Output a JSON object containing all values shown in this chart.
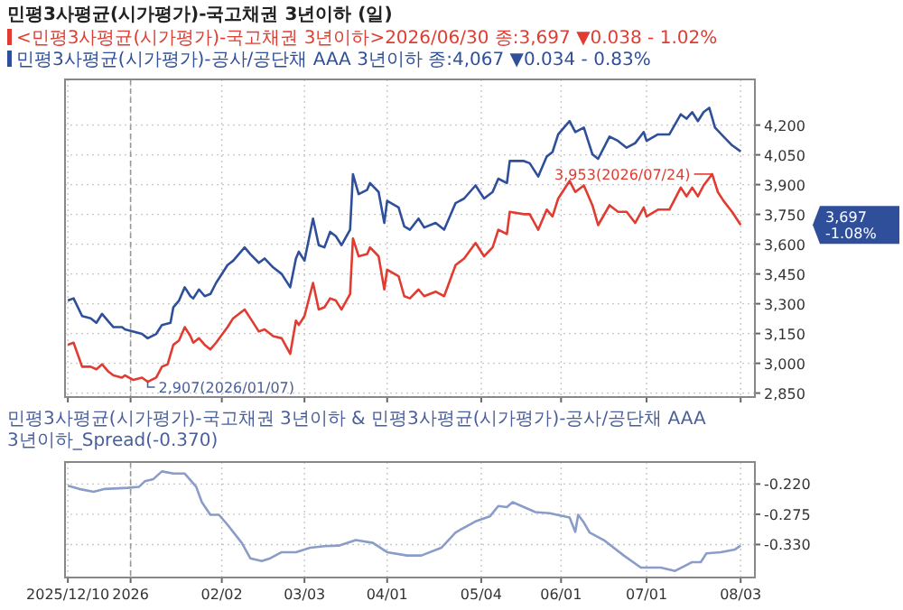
{
  "chart_data": [
    {
      "type": "line",
      "title": "민평3사평균(시가평가)-국고채권 3년이하 (일)",
      "legend": "top left",
      "tick_labels": "y",
      "grid": true,
      "xlim": [
        "2025-12-09",
        "2026-08-08"
      ],
      "xticks": [
        {
          "value": "2025-12-10",
          "label": null
        },
        {
          "value": "2026-01-01",
          "label": null
        },
        {
          "value": "2026-02-02",
          "label": null
        },
        {
          "value": "2026-03-03",
          "label": null
        },
        {
          "value": "2026-04-01",
          "label": null
        },
        {
          "value": "2026-05-04",
          "label": null
        },
        {
          "value": "2026-06-01",
          "label": null
        },
        {
          "value": "2026-07-01",
          "label": null
        },
        {
          "value": "2026-08-03",
          "label": null
        }
      ],
      "ylim": [
        2830,
        4430
      ],
      "yticks": [
        {
          "value": 2850,
          "label": "2,850"
        },
        {
          "value": 3000,
          "label": "3,000"
        },
        {
          "value": 3150,
          "label": "3,150"
        },
        {
          "value": 3300,
          "label": "3,300"
        },
        {
          "value": 3450,
          "label": "3,450"
        },
        {
          "value": 3600,
          "label": "3,600"
        },
        {
          "value": 3750,
          "label": "3,750"
        },
        {
          "value": 3900,
          "label": "3,900"
        },
        {
          "value": 4050,
          "label": "4,050"
        },
        {
          "value": 4200,
          "label": "4,200"
        }
      ],
      "ref_lines": [
        {
          "axis": "x",
          "value": "2026-01-01",
          "color": "#999999",
          "line_style": "dashed"
        }
      ],
      "series": [
        {
          "name": "<민평3사평균(시가평가)-국고채권 3년이하>2026/06/30 종:3,697 ▼0.038 - 1.02%",
          "color": "#e03c31",
          "x": [
            "2025-12-10",
            "2025-12-12",
            "2025-12-15",
            "2025-12-18",
            "2025-12-20",
            "2025-12-22",
            "2025-12-24",
            "2025-12-26",
            "2025-12-29",
            "2025-12-30",
            "2026-01-02",
            "2026-01-05",
            "2026-01-07",
            "2026-01-10",
            "2026-01-12",
            "2026-01-14",
            "2026-01-16",
            "2026-01-18",
            "2026-01-20",
            "2026-01-22",
            "2026-01-23",
            "2026-01-25",
            "2026-01-27",
            "2026-01-29",
            "2026-01-31",
            "2026-02-04",
            "2026-02-06",
            "2026-02-10",
            "2026-02-12",
            "2026-02-15",
            "2026-02-17",
            "2026-02-20",
            "2026-02-23",
            "2026-02-26",
            "2026-02-28",
            "2026-03-01",
            "2026-03-03",
            "2026-03-06",
            "2026-03-08",
            "2026-03-10",
            "2026-03-12",
            "2026-03-14",
            "2026-03-16",
            "2026-03-19",
            "2026-03-20",
            "2026-03-22",
            "2026-03-25",
            "2026-03-26",
            "2026-03-29",
            "2026-03-31",
            "2026-04-01",
            "2026-04-05",
            "2026-04-07",
            "2026-04-09",
            "2026-04-12",
            "2026-04-14",
            "2026-04-18",
            "2026-04-21",
            "2026-04-25",
            "2026-04-28",
            "2026-05-02",
            "2026-05-05",
            "2026-05-08",
            "2026-05-10",
            "2026-05-13",
            "2026-05-14",
            "2026-05-19",
            "2026-05-21",
            "2026-05-24",
            "2026-05-27",
            "2026-05-29",
            "2026-05-31",
            "2026-06-04",
            "2026-06-06",
            "2026-06-09",
            "2026-06-12",
            "2026-06-14",
            "2026-06-18",
            "2026-06-21",
            "2026-06-24",
            "2026-06-27",
            "2026-06-30",
            "2026-07-01",
            "2026-07-05",
            "2026-07-09",
            "2026-07-13",
            "2026-07-15",
            "2026-07-17",
            "2026-07-19",
            "2026-07-21",
            "2026-07-24",
            "2026-07-26",
            "2026-07-28",
            "2026-07-31",
            "2026-08-03"
          ],
          "values": [
            3093,
            3104,
            2983,
            2983,
            2970,
            2995,
            2961,
            2939,
            2928,
            2939,
            2916,
            2928,
            2907,
            2928,
            2983,
            2995,
            3093,
            3115,
            3182,
            3137,
            3104,
            3126,
            3093,
            3070,
            3104,
            3182,
            3227,
            3271,
            3227,
            3160,
            3171,
            3137,
            3126,
            3048,
            3215,
            3193,
            3238,
            3405,
            3271,
            3282,
            3327,
            3316,
            3271,
            3349,
            3629,
            3539,
            3550,
            3584,
            3539,
            3372,
            3472,
            3439,
            3338,
            3327,
            3372,
            3338,
            3361,
            3338,
            3495,
            3528,
            3606,
            3539,
            3584,
            3673,
            3651,
            3763,
            3751,
            3751,
            3673,
            3774,
            3740,
            3830,
            3919,
            3863,
            3896,
            3796,
            3696,
            3796,
            3763,
            3763,
            3707,
            3785,
            3740,
            3774,
            3774,
            3885,
            3841,
            3885,
            3841,
            3896,
            3953,
            3863,
            3818,
            3763,
            3697
          ]
        },
        {
          "name": "민평3사평균(시가평가)-공사/공단채 AAA 3년이하 종:4,067 ▼0.034 - 0.83%",
          "color": "#2f4f9a",
          "x": [
            "2025-12-10",
            "2025-12-12",
            "2025-12-15",
            "2025-12-18",
            "2025-12-20",
            "2025-12-22",
            "2025-12-24",
            "2025-12-26",
            "2025-12-29",
            "2025-12-30",
            "2026-01-02",
            "2026-01-05",
            "2026-01-07",
            "2026-01-10",
            "2026-01-12",
            "2026-01-15",
            "2026-01-16",
            "2026-01-18",
            "2026-01-20",
            "2026-01-22",
            "2026-01-23",
            "2026-01-25",
            "2026-01-27",
            "2026-01-29",
            "2026-01-31",
            "2026-02-04",
            "2026-02-06",
            "2026-02-10",
            "2026-02-12",
            "2026-02-15",
            "2026-02-17",
            "2026-02-20",
            "2026-02-23",
            "2026-02-26",
            "2026-02-28",
            "2026-03-01",
            "2026-03-03",
            "2026-03-06",
            "2026-03-08",
            "2026-03-10",
            "2026-03-12",
            "2026-03-14",
            "2026-03-16",
            "2026-03-19",
            "2026-03-20",
            "2026-03-22",
            "2026-03-25",
            "2026-03-26",
            "2026-03-29",
            "2026-03-31",
            "2026-04-01",
            "2026-04-05",
            "2026-04-07",
            "2026-04-09",
            "2026-04-12",
            "2026-04-14",
            "2026-04-18",
            "2026-04-21",
            "2026-04-25",
            "2026-04-28",
            "2026-05-02",
            "2026-05-05",
            "2026-05-08",
            "2026-05-10",
            "2026-05-13",
            "2026-05-14",
            "2026-05-19",
            "2026-05-21",
            "2026-05-24",
            "2026-05-27",
            "2026-05-29",
            "2026-05-31",
            "2026-06-04",
            "2026-06-06",
            "2026-06-09",
            "2026-06-12",
            "2026-06-14",
            "2026-06-18",
            "2026-06-21",
            "2026-06-24",
            "2026-06-27",
            "2026-06-30",
            "2026-07-01",
            "2026-07-05",
            "2026-07-09",
            "2026-07-13",
            "2026-07-15",
            "2026-07-17",
            "2026-07-19",
            "2026-07-21",
            "2026-07-23",
            "2026-07-25",
            "2026-07-28",
            "2026-07-31",
            "2026-08-03"
          ],
          "values": [
            3316,
            3327,
            3238,
            3227,
            3204,
            3249,
            3215,
            3182,
            3182,
            3171,
            3160,
            3148,
            3126,
            3148,
            3193,
            3204,
            3282,
            3316,
            3383,
            3338,
            3327,
            3372,
            3338,
            3349,
            3405,
            3495,
            3517,
            3584,
            3550,
            3506,
            3528,
            3483,
            3450,
            3383,
            3528,
            3562,
            3517,
            3729,
            3595,
            3584,
            3662,
            3640,
            3595,
            3673,
            3952,
            3852,
            3874,
            3908,
            3863,
            3707,
            3818,
            3785,
            3690,
            3673,
            3729,
            3684,
            3707,
            3673,
            3807,
            3830,
            3896,
            3830,
            3863,
            3930,
            3908,
            4019,
            4019,
            4008,
            3941,
            4042,
            4064,
            4153,
            4220,
            4165,
            4187,
            4053,
            4030,
            4142,
            4120,
            4086,
            4109,
            4165,
            4120,
            4153,
            4153,
            4254,
            4232,
            4265,
            4220,
            4265,
            4287,
            4187,
            4142,
            4098,
            4067
          ]
        }
      ],
      "annotations": [
        {
          "text": "2,907(2026/01/07)",
          "x": "2026-01-07",
          "y": 2907
        },
        {
          "text": "3,953(2026/07/24)",
          "x": "2026-07-24",
          "y": 3953
        },
        "3,697\n-1.08%"
      ]
    },
    {
      "type": "line",
      "title": "민평3사평균(시가평가)-국고채권 3년이하 & 민평3사평균(시가평가)-공사/공단채 AAA 3년이하_Spread(-0.370)",
      "grid": true,
      "xlim": [
        "2025-12-09",
        "2026-08-08"
      ],
      "xticks": [
        {
          "value": "2025-12-10",
          "label": "2025/12/10"
        },
        {
          "value": "2026-01-01",
          "label": "2026"
        },
        {
          "value": "2026-02-02",
          "label": "02/02"
        },
        {
          "value": "2026-03-03",
          "label": "03/03"
        },
        {
          "value": "2026-04-01",
          "label": "04/01"
        },
        {
          "value": "2026-05-04",
          "label": "05/04"
        },
        {
          "value": "2026-06-01",
          "label": "06/01"
        },
        {
          "value": "2026-07-01",
          "label": "07/01"
        },
        {
          "value": "2026-08-03",
          "label": "08/03"
        }
      ],
      "ylim": [
        -0.39,
        -0.18
      ],
      "yticks": [
        {
          "value": -0.33,
          "label": "-0.330"
        },
        {
          "value": -0.275,
          "label": "-0.275"
        },
        {
          "value": -0.22,
          "label": "-0.220"
        }
      ],
      "ref_lines": [
        {
          "axis": "x",
          "value": "2026-01-01",
          "color": "#999999",
          "line_style": "dashed"
        }
      ],
      "series": [
        {
          "color": "#8a9cc8",
          "x": [
            "2025-12-10",
            "2025-12-14",
            "2025-12-19",
            "2025-12-23",
            "2025-12-31",
            "2026-01-04",
            "2026-01-06",
            "2026-01-09",
            "2026-01-12",
            "2026-01-16",
            "2026-01-20",
            "2026-01-24",
            "2026-01-26",
            "2026-01-29",
            "2026-02-01",
            "2026-02-04",
            "2026-02-09",
            "2026-02-12",
            "2026-02-16",
            "2026-02-19",
            "2026-02-23",
            "2026-02-28",
            "2026-03-05",
            "2026-03-10",
            "2026-03-15",
            "2026-03-21",
            "2026-03-27",
            "2026-04-01",
            "2026-04-08",
            "2026-04-13",
            "2026-04-20",
            "2026-04-25",
            "2026-05-02",
            "2026-05-07",
            "2026-05-10",
            "2026-05-13",
            "2026-05-15",
            "2026-05-19",
            "2026-05-23",
            "2026-05-28",
            "2026-06-04",
            "2026-06-06",
            "2026-06-07",
            "2026-06-09",
            "2026-06-11",
            "2026-06-16",
            "2026-06-23",
            "2026-06-29",
            "2026-07-06",
            "2026-07-11",
            "2026-07-17",
            "2026-07-20",
            "2026-07-22",
            "2026-07-27",
            "2026-08-01",
            "2026-08-03"
          ],
          "values": [
            -0.223,
            -0.229,
            -0.234,
            -0.229,
            -0.227,
            -0.225,
            -0.215,
            -0.211,
            -0.197,
            -0.201,
            -0.201,
            -0.225,
            -0.253,
            -0.276,
            -0.276,
            -0.294,
            -0.327,
            -0.355,
            -0.36,
            -0.355,
            -0.344,
            -0.344,
            -0.336,
            -0.333,
            -0.332,
            -0.322,
            -0.327,
            -0.344,
            -0.35,
            -0.35,
            -0.336,
            -0.308,
            -0.288,
            -0.279,
            -0.26,
            -0.262,
            -0.253,
            -0.262,
            -0.271,
            -0.273,
            -0.281,
            -0.307,
            -0.276,
            -0.29,
            -0.308,
            -0.322,
            -0.35,
            -0.372,
            -0.372,
            -0.378,
            -0.362,
            -0.362,
            -0.346,
            -0.344,
            -0.339,
            -0.332
          ]
        }
      ]
    }
  ]
}
